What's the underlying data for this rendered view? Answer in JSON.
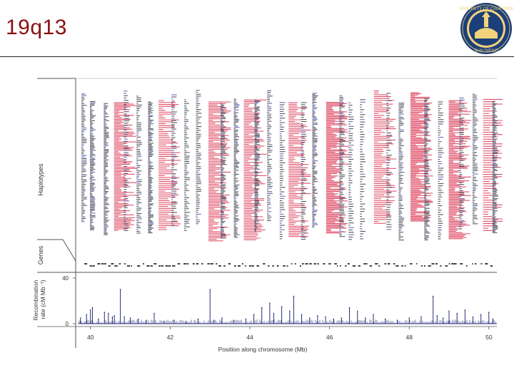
{
  "slide": {
    "title": "19q13"
  },
  "logo": {
    "description_text_top": "UNIVERSITY OF CALIFORNIA",
    "description_text_bottom": "SAN DIEGO"
  },
  "figure": {
    "panel_labels": {
      "haplotypes": "Haplotypes",
      "genes": "Genes",
      "recombination": "Recombination rate (cM Mb⁻¹)"
    },
    "xlabel": "Position along chromosome (Mb)",
    "colors": {
      "haplotype_red": "#e0506a",
      "haplotype_blue": "#6b6fb5",
      "haplotype_dark": "#555566",
      "recombination_line": "#2b2f7a",
      "title": "#8b0f0f"
    }
  },
  "chart_data": {
    "type": "line",
    "title": "",
    "xlabel": "Position along chromosome (Mb)",
    "ylabel": "Recombination rate (cM Mb⁻¹)",
    "xlim": [
      39.7,
      50.2
    ],
    "ylim": [
      0,
      40
    ],
    "x_ticks": [
      40,
      42,
      44,
      46,
      48,
      50
    ],
    "y_ticks": [
      0,
      40
    ],
    "series": [
      {
        "x": [
          39.75,
          39.9,
          40.0,
          40.05,
          40.2,
          40.35,
          40.45,
          40.55,
          40.6,
          40.75,
          40.85,
          41.0,
          41.2,
          41.4,
          41.6,
          41.85,
          42.1,
          42.4,
          42.7,
          43.0,
          43.1,
          43.3,
          43.6,
          43.9,
          44.1,
          44.3,
          44.5,
          44.6,
          44.8,
          45.0,
          45.1,
          45.3,
          45.5,
          45.7,
          45.9,
          46.1,
          46.3,
          46.5,
          46.7,
          46.9,
          47.1,
          47.4,
          47.7,
          48.0,
          48.3,
          48.6,
          48.7,
          48.85,
          49.0,
          49.2,
          49.4,
          49.6,
          49.8,
          50.0,
          50.1
        ],
        "y": [
          5,
          8,
          12,
          14,
          4,
          10,
          9,
          6,
          7,
          30,
          6,
          5,
          4,
          3,
          9,
          2,
          3,
          2,
          4,
          30,
          3,
          5,
          3,
          4,
          8,
          14,
          18,
          9,
          15,
          11,
          24,
          8,
          5,
          7,
          6,
          4,
          5,
          14,
          11,
          5,
          8,
          4,
          3,
          5,
          6,
          24,
          7,
          5,
          11,
          9,
          12,
          6,
          8,
          10,
          4
        ]
      }
    ]
  }
}
